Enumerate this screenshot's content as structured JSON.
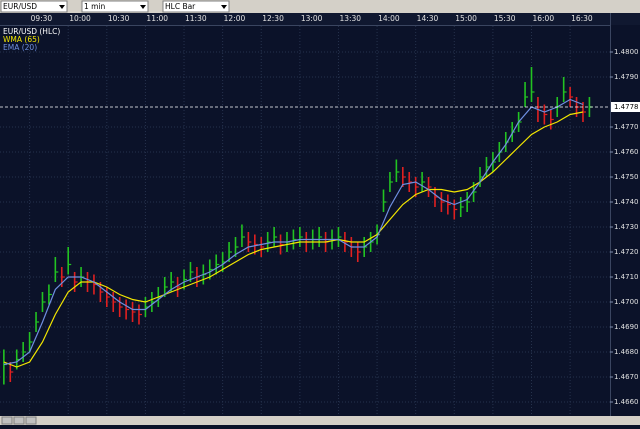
{
  "toolbar": {
    "symbol": "EUR/USD",
    "interval": "1 min",
    "chart_type": "HLC Bar"
  },
  "chart_data": {
    "type": "hlc",
    "x": [
      550,
      555,
      560,
      565,
      570,
      575,
      580,
      585,
      590,
      595,
      600,
      605,
      610,
      615,
      620,
      625,
      630,
      635,
      640,
      645,
      650,
      655,
      660,
      665,
      670,
      675,
      680,
      685,
      690,
      695,
      700,
      705,
      710,
      715,
      720,
      725,
      730,
      735,
      740,
      745,
      750,
      755,
      760,
      765,
      770,
      775,
      780,
      785,
      790,
      795,
      800,
      805,
      810,
      815,
      820,
      825,
      830,
      835,
      840,
      845,
      850,
      855,
      860,
      865,
      870,
      875,
      880,
      885,
      890,
      895,
      900,
      905,
      910,
      915,
      920,
      925,
      930,
      935,
      940,
      945,
      950,
      955,
      960,
      965,
      970,
      975,
      980,
      985,
      990,
      995,
      1000,
      1005
    ],
    "series": [
      {
        "name": "EUR/USD (HLC)",
        "color": "#ffffff",
        "up_color": "#22c322",
        "down_color": "#e02020",
        "high": [
          1.4681,
          1.4676,
          1.4681,
          1.4684,
          1.4688,
          1.4696,
          1.4704,
          1.4707,
          1.4718,
          1.4714,
          1.4722,
          1.4712,
          1.4714,
          1.4712,
          1.4711,
          1.4708,
          1.4706,
          1.4704,
          1.4702,
          1.4701,
          1.47,
          1.4699,
          1.4702,
          1.4704,
          1.4706,
          1.471,
          1.4712,
          1.471,
          1.4713,
          1.4716,
          1.4714,
          1.4715,
          1.4717,
          1.4719,
          1.472,
          1.4724,
          1.4726,
          1.4731,
          1.4728,
          1.4727,
          1.4726,
          1.4728,
          1.473,
          1.4727,
          1.4728,
          1.4729,
          1.473,
          1.4728,
          1.4729,
          1.473,
          1.4728,
          1.4729,
          1.473,
          1.4728,
          1.4726,
          1.4724,
          1.4726,
          1.4728,
          1.4731,
          1.4745,
          1.4752,
          1.4757,
          1.4754,
          1.4752,
          1.475,
          1.4752,
          1.475,
          1.4746,
          1.4744,
          1.4743,
          1.4741,
          1.4742,
          1.4744,
          1.4748,
          1.4754,
          1.4758,
          1.476,
          1.4764,
          1.4768,
          1.4772,
          1.4776,
          1.4788,
          1.4794,
          1.4782,
          1.4779,
          1.4777,
          1.4782,
          1.479,
          1.4786,
          1.4782,
          1.478,
          1.4782
        ],
        "low": [
          1.4667,
          1.4668,
          1.4673,
          1.4676,
          1.468,
          1.4688,
          1.4696,
          1.4699,
          1.4708,
          1.4706,
          1.4711,
          1.4704,
          1.4706,
          1.4704,
          1.4703,
          1.47,
          1.4698,
          1.4696,
          1.4694,
          1.4693,
          1.4692,
          1.4691,
          1.4694,
          1.4696,
          1.4698,
          1.4702,
          1.4704,
          1.4702,
          1.4705,
          1.4708,
          1.4706,
          1.4707,
          1.4709,
          1.4711,
          1.4712,
          1.4716,
          1.4718,
          1.4722,
          1.472,
          1.4719,
          1.4718,
          1.472,
          1.4722,
          1.4719,
          1.472,
          1.4721,
          1.4722,
          1.472,
          1.4721,
          1.4722,
          1.472,
          1.4721,
          1.4722,
          1.472,
          1.4718,
          1.4716,
          1.4718,
          1.472,
          1.4723,
          1.4736,
          1.4744,
          1.4748,
          1.4746,
          1.4744,
          1.4742,
          1.4744,
          1.4742,
          1.4738,
          1.4736,
          1.4735,
          1.4733,
          1.4734,
          1.4736,
          1.474,
          1.4746,
          1.475,
          1.4752,
          1.4756,
          1.476,
          1.4764,
          1.4768,
          1.4778,
          1.478,
          1.4772,
          1.4771,
          1.4769,
          1.4774,
          1.478,
          1.4778,
          1.4774,
          1.4772,
          1.4774
        ],
        "values": [
          1.4675,
          1.4672,
          1.4677,
          1.468,
          1.4684,
          1.4692,
          1.47,
          1.4703,
          1.4712,
          1.471,
          1.4715,
          1.4708,
          1.471,
          1.4708,
          1.4707,
          1.4704,
          1.4702,
          1.47,
          1.4698,
          1.4697,
          1.4696,
          1.4695,
          1.4698,
          1.47,
          1.4702,
          1.4706,
          1.4708,
          1.4706,
          1.4709,
          1.4712,
          1.471,
          1.4711,
          1.4713,
          1.4715,
          1.4716,
          1.472,
          1.4722,
          1.4726,
          1.4724,
          1.4723,
          1.4722,
          1.4724,
          1.4726,
          1.4723,
          1.4724,
          1.4725,
          1.4726,
          1.4724,
          1.4725,
          1.4726,
          1.4724,
          1.4725,
          1.4726,
          1.4724,
          1.4722,
          1.472,
          1.4722,
          1.4724,
          1.4727,
          1.474,
          1.4748,
          1.4752,
          1.475,
          1.4748,
          1.4746,
          1.4748,
          1.4746,
          1.4742,
          1.474,
          1.4739,
          1.4737,
          1.4738,
          1.474,
          1.4744,
          1.475,
          1.4754,
          1.4756,
          1.476,
          1.4764,
          1.4768,
          1.4772,
          1.4782,
          1.4784,
          1.4778,
          1.4775,
          1.4773,
          1.4778,
          1.4784,
          1.4782,
          1.4778,
          1.4776,
          1.4778
        ]
      },
      {
        "name": "WMA (65)",
        "color": "#f2e600",
        "x": [
          550,
          560,
          570,
          580,
          590,
          600,
          610,
          620,
          630,
          640,
          650,
          660,
          670,
          680,
          690,
          700,
          710,
          720,
          730,
          740,
          750,
          760,
          770,
          780,
          790,
          800,
          810,
          820,
          830,
          840,
          850,
          860,
          870,
          880,
          890,
          900,
          910,
          920,
          930,
          940,
          950,
          960,
          970,
          980,
          990,
          1000
        ],
        "values": [
          1.4676,
          1.4674,
          1.4676,
          1.4684,
          1.4695,
          1.4704,
          1.4708,
          1.4708,
          1.4706,
          1.4703,
          1.4701,
          1.47,
          1.4702,
          1.4704,
          1.4706,
          1.4708,
          1.471,
          1.4713,
          1.4716,
          1.4719,
          1.4721,
          1.4722,
          1.4723,
          1.4724,
          1.4724,
          1.4724,
          1.4725,
          1.4724,
          1.4724,
          1.4727,
          1.4733,
          1.4739,
          1.4743,
          1.4745,
          1.4745,
          1.4744,
          1.4745,
          1.4748,
          1.4752,
          1.4757,
          1.4762,
          1.4767,
          1.477,
          1.4772,
          1.4775,
          1.4776
        ]
      },
      {
        "name": "EMA (20)",
        "color": "#6f8fe0",
        "x": [
          550,
          560,
          570,
          580,
          590,
          600,
          610,
          620,
          630,
          640,
          650,
          660,
          670,
          680,
          690,
          700,
          710,
          720,
          730,
          740,
          750,
          760,
          770,
          780,
          790,
          800,
          810,
          820,
          830,
          840,
          850,
          860,
          870,
          880,
          890,
          900,
          910,
          920,
          930,
          940,
          950,
          960,
          970,
          980,
          990,
          1000
        ],
        "values": [
          1.4675,
          1.4676,
          1.468,
          1.4692,
          1.4705,
          1.471,
          1.471,
          1.4708,
          1.4704,
          1.47,
          1.4697,
          1.4697,
          1.4701,
          1.4705,
          1.4708,
          1.471,
          1.4712,
          1.4715,
          1.4719,
          1.4722,
          1.4723,
          1.4724,
          1.4724,
          1.4725,
          1.4725,
          1.4725,
          1.4725,
          1.4722,
          1.4722,
          1.4726,
          1.4738,
          1.4747,
          1.4748,
          1.4745,
          1.4741,
          1.4739,
          1.4741,
          1.4748,
          1.4756,
          1.4763,
          1.4772,
          1.4778,
          1.4776,
          1.4778,
          1.4781,
          1.4779
        ]
      }
    ],
    "last_price": 1.4778,
    "xlim": [
      547,
      1021
    ],
    "xticks": [
      {
        "value": 570,
        "label": "09:30"
      },
      {
        "value": 600,
        "label": "10:00"
      },
      {
        "value": 630,
        "label": "10:30"
      },
      {
        "value": 660,
        "label": "11:00"
      },
      {
        "value": 690,
        "label": "11:30"
      },
      {
        "value": 720,
        "label": "12:00"
      },
      {
        "value": 750,
        "label": "12:30"
      },
      {
        "value": 780,
        "label": "13:00"
      },
      {
        "value": 810,
        "label": "13:30"
      },
      {
        "value": 840,
        "label": "14:00"
      },
      {
        "value": 870,
        "label": "14:30"
      },
      {
        "value": 900,
        "label": "15:00"
      },
      {
        "value": 930,
        "label": "15:30"
      },
      {
        "value": 960,
        "label": "16:00"
      },
      {
        "value": 990,
        "label": "16:30"
      }
    ],
    "ylim": [
      1.4654,
      1.481
    ],
    "yticks": [
      {
        "value": 1.466,
        "label": "1.4660"
      },
      {
        "value": 1.467,
        "label": "1.4670"
      },
      {
        "value": 1.468,
        "label": "1.4680"
      },
      {
        "value": 1.469,
        "label": "1.4690"
      },
      {
        "value": 1.47,
        "label": "1.4700"
      },
      {
        "value": 1.471,
        "label": "1.4710"
      },
      {
        "value": 1.472,
        "label": "1.4720"
      },
      {
        "value": 1.473,
        "label": "1.4730"
      },
      {
        "value": 1.474,
        "label": "1.4740"
      },
      {
        "value": 1.475,
        "label": "1.4750"
      },
      {
        "value": 1.476,
        "label": "1.4760"
      },
      {
        "value": 1.477,
        "label": "1.4770"
      },
      {
        "value": 1.479,
        "label": "1.4790"
      },
      {
        "value": 1.48,
        "label": "1.4800"
      }
    ],
    "grid": true
  }
}
